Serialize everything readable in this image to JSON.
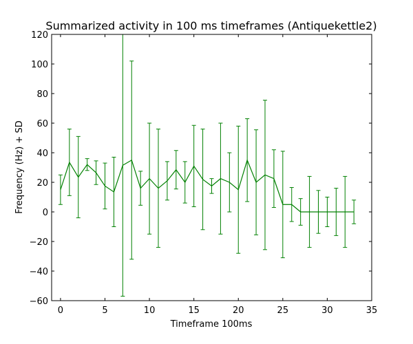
{
  "chart_data": {
    "type": "line",
    "title": "Summarized activity in 100 ms timeframes (Antiquekettle2)",
    "xlabel": "Timeframe 100ms",
    "ylabel": "Frequency (Hz) + SD",
    "xlim": [
      -1,
      35
    ],
    "ylim": [
      -60,
      120
    ],
    "xticks": [
      0,
      5,
      10,
      15,
      20,
      25,
      30,
      35
    ],
    "yticks": [
      -60,
      -40,
      -20,
      0,
      20,
      40,
      60,
      80,
      100,
      120
    ],
    "grid": false,
    "color": "#008000",
    "series": [
      {
        "x": [
          0,
          1,
          2,
          3,
          4,
          5,
          6,
          7,
          8,
          9,
          10,
          11,
          12,
          13,
          14,
          15,
          16,
          17,
          18,
          19,
          20,
          21,
          22,
          23,
          24,
          25,
          26,
          27,
          28,
          29,
          30,
          31,
          32,
          33
        ],
        "y": [
          15,
          33.5,
          23.5,
          32,
          26.5,
          17.5,
          13.5,
          31.5,
          35,
          16,
          22.5,
          16,
          21,
          28.5,
          20,
          31,
          22,
          17.5,
          22.5,
          20,
          15,
          35,
          20,
          25,
          22.5,
          5,
          5,
          0,
          0,
          0,
          0,
          0,
          0,
          0
        ],
        "sd": [
          10,
          22.5,
          27.5,
          4,
          8,
          15.5,
          23.5,
          88.5,
          67,
          11.5,
          37.5,
          40,
          13,
          13,
          14,
          27.5,
          34,
          5,
          37.5,
          20,
          43,
          28,
          35.5,
          50.5,
          19.5,
          36,
          11.5,
          9,
          24,
          14.5,
          10,
          16,
          24,
          8
        ]
      }
    ]
  }
}
